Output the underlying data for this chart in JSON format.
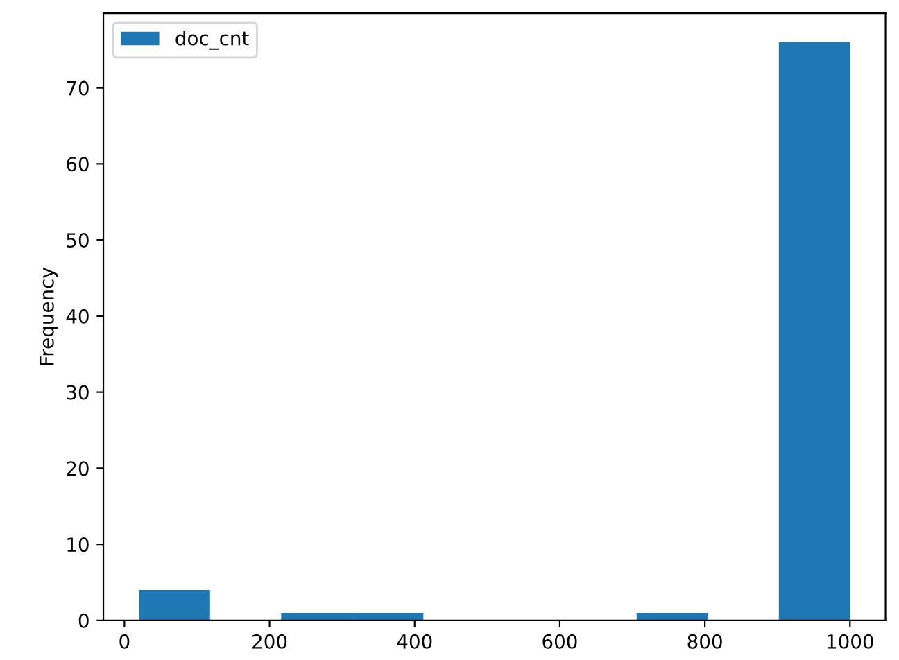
{
  "chart_data": {
    "type": "histogram",
    "ylabel": "Frequency",
    "bins": [
      20,
      118,
      216,
      314,
      412,
      510,
      608,
      706,
      804,
      902,
      1000
    ],
    "series": [
      {
        "name": "doc_cnt",
        "color": "#1f77b4",
        "values": [
          4,
          0,
          1,
          1,
          0,
          0,
          0,
          1,
          0,
          76
        ]
      }
    ],
    "xlim": [
      -29,
      1049
    ],
    "xticks": [
      0,
      200,
      400,
      600,
      800,
      1000
    ],
    "ylim": [
      0,
      79.8
    ],
    "yticks": [
      0,
      10,
      20,
      30,
      40,
      50,
      60,
      70
    ],
    "legend": "top left",
    "grid": false
  }
}
